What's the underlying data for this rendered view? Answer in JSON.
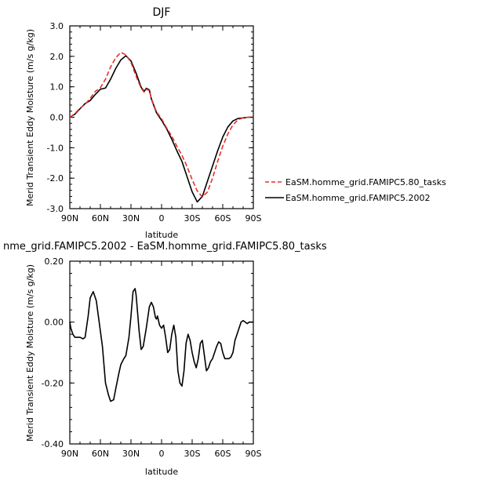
{
  "chart_data": [
    {
      "type": "line",
      "title": "DJF",
      "xlabel": "latitude",
      "ylabel": "Merid Transient Eddy Moisture (m/s g/kg)",
      "xlim": [
        90,
        -90
      ],
      "ylim": [
        -3.0,
        3.0
      ],
      "x_ticks": [
        90,
        60,
        30,
        0,
        -30,
        -60,
        -90
      ],
      "x_tick_labels": [
        "90N",
        "60N",
        "30N",
        "0",
        "30S",
        "60S",
        "90S"
      ],
      "y_ticks": [
        3.0,
        2.0,
        1.0,
        0.0,
        -1.0,
        -2.0,
        -3.0
      ],
      "y_tick_labels": [
        "3.0",
        "2.0",
        "1.0",
        "0.0",
        "-1.0",
        "-2.0",
        "-3.0"
      ],
      "legend_position": "right",
      "series": [
        {
          "name": "EaSM.homme_grid.FAMIPC5.80_tasks",
          "color": "#e8302c",
          "dash": "dashed",
          "x": [
            90,
            85,
            80,
            75,
            70,
            65,
            60,
            55,
            50,
            45,
            40,
            35,
            30,
            25,
            20,
            17,
            15,
            12,
            10,
            5,
            0,
            -5,
            -10,
            -15,
            -20,
            -25,
            -30,
            -35,
            -40,
            -45,
            -50,
            -55,
            -60,
            -65,
            -70,
            -75,
            -80,
            -85,
            -90
          ],
          "y": [
            0.0,
            0.12,
            0.3,
            0.42,
            0.62,
            0.85,
            0.97,
            1.25,
            1.65,
            1.95,
            2.13,
            2.05,
            1.8,
            1.35,
            0.95,
            0.82,
            0.92,
            0.88,
            0.62,
            0.18,
            -0.05,
            -0.35,
            -0.62,
            -0.95,
            -1.25,
            -1.62,
            -2.05,
            -2.42,
            -2.62,
            -2.45,
            -2.0,
            -1.45,
            -0.95,
            -0.55,
            -0.25,
            -0.08,
            -0.02,
            0.0,
            0.0
          ]
        },
        {
          "name": "EaSM.homme_grid.FAMIPC5.2002",
          "color": "#000000",
          "dash": "solid",
          "x": [
            90,
            85,
            80,
            75,
            70,
            65,
            60,
            55,
            50,
            45,
            40,
            35,
            30,
            25,
            20,
            17,
            15,
            12,
            10,
            5,
            0,
            -5,
            -10,
            -15,
            -20,
            -25,
            -30,
            -35,
            -40,
            -45,
            -50,
            -55,
            -60,
            -65,
            -70,
            -75,
            -80,
            -85,
            -90
          ],
          "y": [
            0.0,
            0.1,
            0.28,
            0.45,
            0.55,
            0.75,
            0.92,
            0.96,
            1.25,
            1.6,
            1.88,
            2.02,
            1.85,
            1.45,
            0.98,
            0.85,
            0.95,
            0.9,
            0.6,
            0.15,
            -0.1,
            -0.38,
            -0.72,
            -1.1,
            -1.45,
            -1.95,
            -2.45,
            -2.78,
            -2.6,
            -2.1,
            -1.6,
            -1.1,
            -0.65,
            -0.32,
            -0.12,
            -0.04,
            -0.02,
            0.0,
            0.0
          ]
        }
      ]
    },
    {
      "type": "line",
      "title": "nme_grid.FAMIPC5.2002 - EaSM.homme_grid.FAMIPC5.80_tasks",
      "xlabel": "latitude",
      "ylabel": "Merid Transient Eddy Moisture (m/s g/kg)",
      "xlim": [
        90,
        -90
      ],
      "ylim": [
        -0.4,
        0.2
      ],
      "x_ticks": [
        90,
        60,
        30,
        0,
        -30,
        -60,
        -90
      ],
      "x_tick_labels": [
        "90N",
        "60N",
        "30N",
        "0",
        "30S",
        "60S",
        "90S"
      ],
      "y_ticks": [
        0.2,
        0.0,
        -0.2,
        -0.4
      ],
      "y_tick_labels": [
        "0.20",
        "0.00",
        "-0.20",
        "-0.40"
      ],
      "series": [
        {
          "color": "#000000",
          "dash": "solid",
          "x": [
            90,
            89,
            87,
            85,
            83,
            80,
            77,
            75,
            72,
            70,
            67,
            64,
            62,
            58,
            55,
            52,
            50,
            47,
            45,
            42,
            40,
            37,
            35,
            32,
            30,
            28,
            26,
            25,
            24,
            22,
            20,
            18,
            15,
            12,
            10,
            8,
            6,
            5,
            4,
            2,
            0,
            -2,
            -4,
            -6,
            -8,
            -10,
            -12,
            -14,
            -16,
            -18,
            -20,
            -22,
            -24,
            -26,
            -28,
            -30,
            -32,
            -34,
            -36,
            -38,
            -40,
            -42,
            -44,
            -46,
            -48,
            -50,
            -52,
            -54,
            -56,
            -58,
            -60,
            -62,
            -64,
            -66,
            -68,
            -70,
            -72,
            -74,
            -76,
            -78,
            -80,
            -82,
            -84,
            -86,
            -88,
            -90
          ],
          "y": [
            0.0,
            -0.02,
            -0.04,
            -0.05,
            -0.05,
            -0.05,
            -0.055,
            -0.05,
            0.02,
            0.08,
            0.1,
            0.07,
            0.02,
            -0.08,
            -0.2,
            -0.24,
            -0.26,
            -0.255,
            -0.22,
            -0.17,
            -0.14,
            -0.12,
            -0.11,
            -0.05,
            0.02,
            0.1,
            0.11,
            0.09,
            0.05,
            -0.03,
            -0.09,
            -0.08,
            -0.02,
            0.05,
            0.065,
            0.05,
            0.015,
            0.01,
            0.02,
            -0.01,
            -0.02,
            -0.01,
            -0.05,
            -0.1,
            -0.09,
            -0.04,
            -0.01,
            -0.05,
            -0.16,
            -0.2,
            -0.21,
            -0.16,
            -0.07,
            -0.04,
            -0.06,
            -0.1,
            -0.13,
            -0.15,
            -0.12,
            -0.07,
            -0.06,
            -0.11,
            -0.16,
            -0.15,
            -0.13,
            -0.12,
            -0.1,
            -0.08,
            -0.065,
            -0.07,
            -0.1,
            -0.12,
            -0.12,
            -0.12,
            -0.115,
            -0.1,
            -0.06,
            -0.04,
            -0.02,
            0.0,
            0.005,
            0.0,
            -0.005,
            0.0,
            0.0,
            0.0
          ]
        }
      ]
    }
  ]
}
